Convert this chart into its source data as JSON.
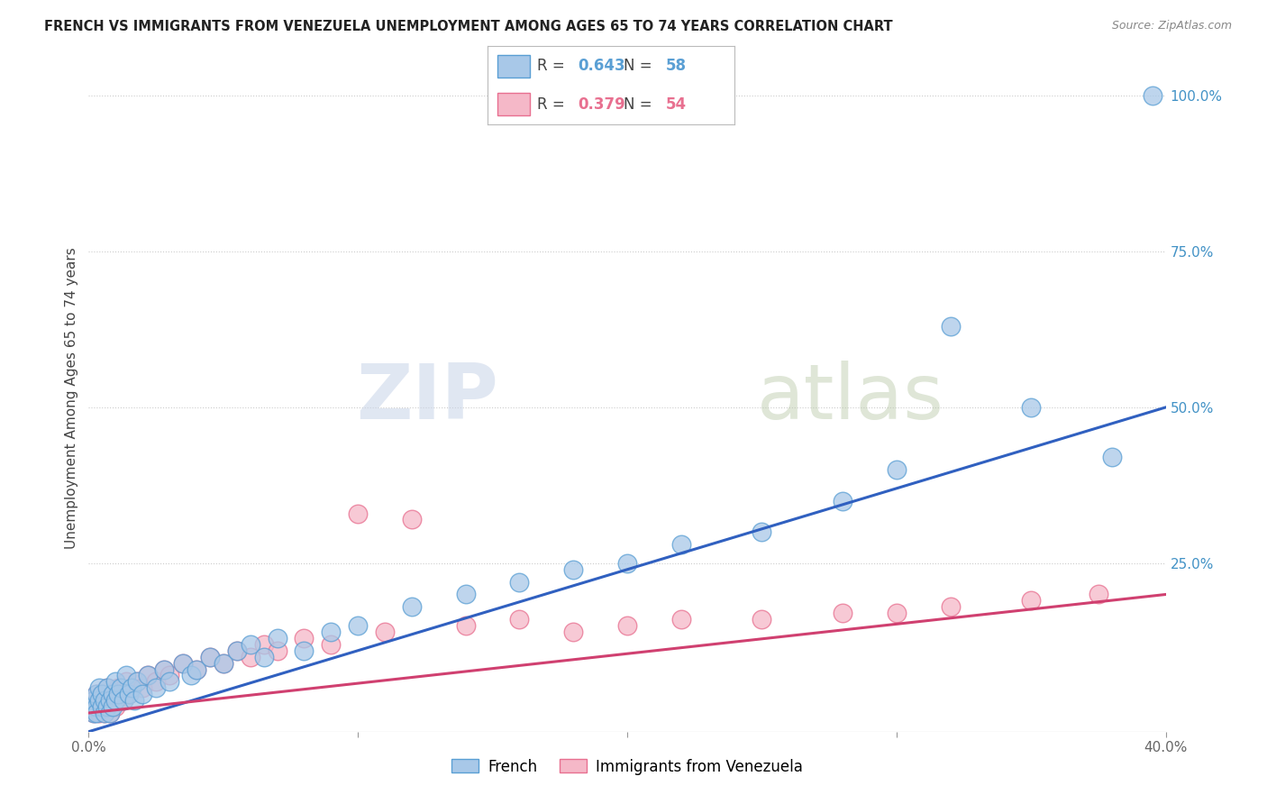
{
  "title": "FRENCH VS IMMIGRANTS FROM VENEZUELA UNEMPLOYMENT AMONG AGES 65 TO 74 YEARS CORRELATION CHART",
  "source": "Source: ZipAtlas.com",
  "ylabel": "Unemployment Among Ages 65 to 74 years",
  "xlim": [
    0.0,
    0.4
  ],
  "ylim": [
    -0.02,
    1.05
  ],
  "xticks": [
    0.0,
    0.1,
    0.2,
    0.3,
    0.4
  ],
  "xtick_labels": [
    "0.0%",
    "",
    "",
    "",
    "40.0%"
  ],
  "ytick_labels_right": [
    "100.0%",
    "75.0%",
    "50.0%",
    "25.0%"
  ],
  "yticks_right": [
    1.0,
    0.75,
    0.5,
    0.25
  ],
  "french_color": "#a8c8e8",
  "french_edge_color": "#5a9fd4",
  "venezuela_color": "#f5b8c8",
  "venezuela_edge_color": "#e87090",
  "french_R": 0.643,
  "french_N": 58,
  "venezuela_R": 0.379,
  "venezuela_N": 54,
  "french_line_color": "#3060c0",
  "venezuela_line_color": "#d04070",
  "watermark_zip": "ZIP",
  "watermark_atlas": "atlas",
  "french_x": [
    0.001,
    0.002,
    0.002,
    0.003,
    0.003,
    0.003,
    0.004,
    0.004,
    0.005,
    0.005,
    0.006,
    0.006,
    0.007,
    0.007,
    0.008,
    0.008,
    0.009,
    0.009,
    0.01,
    0.01,
    0.011,
    0.012,
    0.013,
    0.014,
    0.015,
    0.016,
    0.017,
    0.018,
    0.02,
    0.022,
    0.025,
    0.028,
    0.03,
    0.035,
    0.038,
    0.04,
    0.045,
    0.05,
    0.055,
    0.06,
    0.065,
    0.07,
    0.08,
    0.09,
    0.1,
    0.12,
    0.14,
    0.16,
    0.18,
    0.2,
    0.22,
    0.25,
    0.28,
    0.3,
    0.32,
    0.35,
    0.38,
    0.395
  ],
  "french_y": [
    0.02,
    0.01,
    0.03,
    0.02,
    0.04,
    0.01,
    0.03,
    0.05,
    0.02,
    0.04,
    0.01,
    0.03,
    0.02,
    0.05,
    0.03,
    0.01,
    0.04,
    0.02,
    0.03,
    0.06,
    0.04,
    0.05,
    0.03,
    0.07,
    0.04,
    0.05,
    0.03,
    0.06,
    0.04,
    0.07,
    0.05,
    0.08,
    0.06,
    0.09,
    0.07,
    0.08,
    0.1,
    0.09,
    0.11,
    0.12,
    0.1,
    0.13,
    0.11,
    0.14,
    0.15,
    0.18,
    0.2,
    0.22,
    0.24,
    0.25,
    0.28,
    0.3,
    0.35,
    0.4,
    0.63,
    0.5,
    0.42,
    1.0
  ],
  "venezuela_x": [
    0.001,
    0.002,
    0.002,
    0.003,
    0.003,
    0.004,
    0.004,
    0.005,
    0.005,
    0.006,
    0.006,
    0.007,
    0.007,
    0.008,
    0.008,
    0.009,
    0.01,
    0.01,
    0.011,
    0.012,
    0.013,
    0.014,
    0.015,
    0.016,
    0.018,
    0.02,
    0.022,
    0.025,
    0.028,
    0.03,
    0.035,
    0.04,
    0.045,
    0.05,
    0.055,
    0.06,
    0.065,
    0.07,
    0.08,
    0.09,
    0.1,
    0.11,
    0.12,
    0.14,
    0.16,
    0.18,
    0.2,
    0.22,
    0.25,
    0.28,
    0.3,
    0.32,
    0.35,
    0.375
  ],
  "venezuela_y": [
    0.02,
    0.01,
    0.03,
    0.02,
    0.04,
    0.01,
    0.03,
    0.02,
    0.04,
    0.01,
    0.03,
    0.02,
    0.05,
    0.03,
    0.01,
    0.04,
    0.02,
    0.03,
    0.05,
    0.04,
    0.03,
    0.06,
    0.04,
    0.05,
    0.06,
    0.05,
    0.07,
    0.06,
    0.08,
    0.07,
    0.09,
    0.08,
    0.1,
    0.09,
    0.11,
    0.1,
    0.12,
    0.11,
    0.13,
    0.12,
    0.33,
    0.14,
    0.32,
    0.15,
    0.16,
    0.14,
    0.15,
    0.16,
    0.16,
    0.17,
    0.17,
    0.18,
    0.19,
    0.2
  ]
}
